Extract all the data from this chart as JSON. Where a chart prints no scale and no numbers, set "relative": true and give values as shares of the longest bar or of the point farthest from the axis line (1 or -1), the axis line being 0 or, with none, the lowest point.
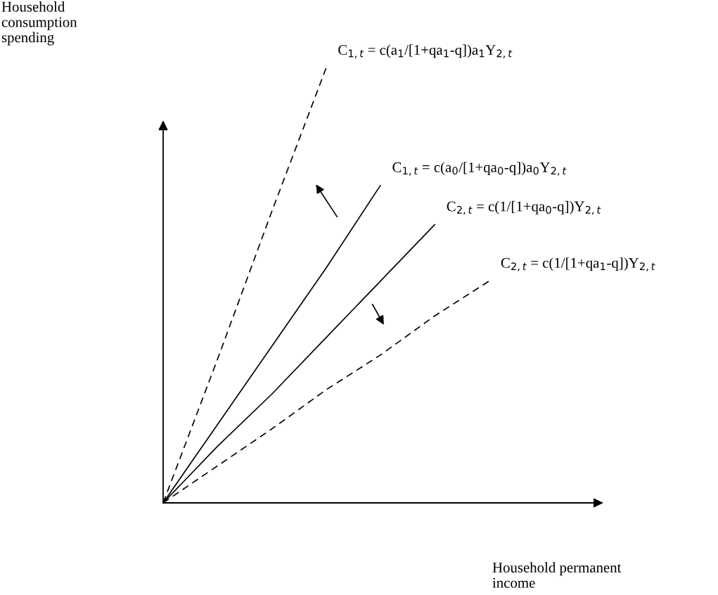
{
  "chart_data": {
    "type": "line",
    "relative": true,
    "xlabel": "Household permanent\nincome",
    "ylabel": "Household\nconsumption\nspending",
    "marker": "none",
    "categories": [
      null,
      null,
      null,
      null,
      null,
      null,
      null
    ],
    "series": [
      {
        "name": "C$_{1,t}$ = c(a$_{1}$/[1+qa$_{1}$-q])a$_{1}$Y$_{2,t}$",
        "color": "#000000",
        "line_style": "dashed",
        "values": [
          0,
          0.33,
          0.67,
          1,
          null,
          null,
          null
        ]
      },
      {
        "name": "C$_{1,t}$ = c(a$_{0}$/[1+qa$_{0}$-q])a$_{0}$Y$_{2,t}$",
        "color": "#000000",
        "line_style": "solid",
        "values": [
          0,
          0.18,
          0.36,
          0.54,
          0.73,
          null,
          null
        ]
      },
      {
        "name": "C$_{2,t}$ = c(1/[1+qa$_{0}$-q])Y$_{2,t}$",
        "color": "#000000",
        "line_style": "solid",
        "values": [
          0,
          0.13,
          0.25,
          0.38,
          0.51,
          0.64,
          null
        ]
      },
      {
        "name": "C$_{2,t}$ = c(1/[1+qa$_{1}$-q])Y$_{2,t}$",
        "color": "#000000",
        "line_style": "dashed",
        "values": [
          0,
          0.085,
          0.17,
          0.26,
          0.34,
          0.43,
          0.51
        ]
      }
    ]
  }
}
